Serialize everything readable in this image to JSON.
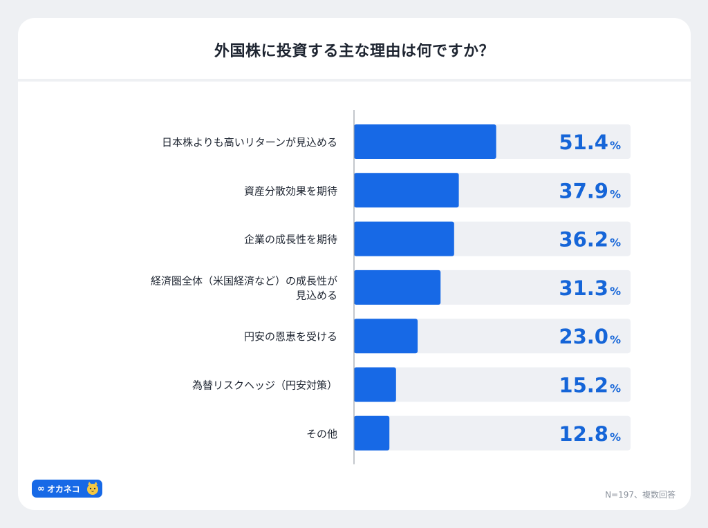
{
  "title": "外国株に投資する主な理由は何ですか？",
  "footnote": "N=197、複数回答",
  "logo": {
    "text": "オカネコ",
    "mark": "∞"
  },
  "colors": {
    "bar": "#1769e6",
    "track": "#eef0f4",
    "value": "#1565d8",
    "label": "#1d2430",
    "axis": "#9aa1ab"
  },
  "chart_data": {
    "type": "bar",
    "orientation": "horizontal",
    "unit": "%",
    "categories": [
      [
        "日本株よりも高いリターンが見込める"
      ],
      [
        "資産分散効果を期待"
      ],
      [
        "企業の成長性を期待"
      ],
      [
        "経済圏全体（米国経済など）の成長性が",
        "見込める"
      ],
      [
        "円安の恩恵を受ける"
      ],
      [
        "為替リスクヘッジ（円安対策）"
      ],
      [
        "その他"
      ]
    ],
    "values": [
      51.4,
      37.9,
      36.2,
      31.3,
      23.0,
      15.2,
      12.8
    ],
    "value_labels": [
      "51.4",
      "37.9",
      "36.2",
      "31.3",
      "23.0",
      "15.2",
      "12.8"
    ],
    "xlim": [
      0,
      100
    ],
    "grid": false,
    "legend": "none"
  }
}
